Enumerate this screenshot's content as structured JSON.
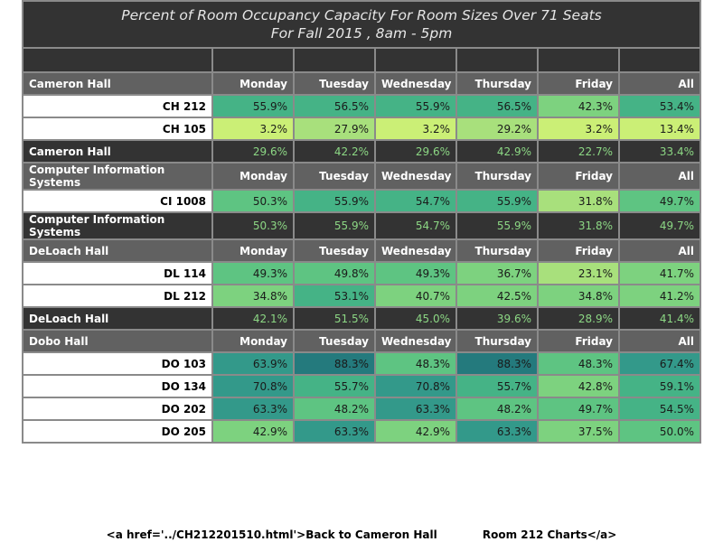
{
  "title_line1": "Percent of Room Occupancy Capacity For Room Sizes Over 71 Seats",
  "title_line2": "For Fall 2015  , 8am - 5pm",
  "days": [
    "Monday",
    "Tuesday",
    "Wednesday",
    "Thursday",
    "Friday",
    "All"
  ],
  "buildings": [
    {
      "name": "Cameron Hall",
      "rooms": [
        {
          "name": "CH 212",
          "values": [
            "55.9%",
            "56.5%",
            "55.9%",
            "56.5%",
            "42.3%",
            "53.4%"
          ]
        },
        {
          "name": "CH 105",
          "values": [
            "3.2%",
            "27.9%",
            "3.2%",
            "29.2%",
            "3.2%",
            "13.4%"
          ]
        }
      ],
      "total": [
        "29.6%",
        "42.2%",
        "29.6%",
        "42.9%",
        "22.7%",
        "33.4%"
      ]
    },
    {
      "name": "Computer Information Systems",
      "rooms": [
        {
          "name": "CI 1008",
          "values": [
            "50.3%",
            "55.9%",
            "54.7%",
            "55.9%",
            "31.8%",
            "49.7%"
          ]
        }
      ],
      "total": [
        "50.3%",
        "55.9%",
        "54.7%",
        "55.9%",
        "31.8%",
        "49.7%"
      ]
    },
    {
      "name": "DeLoach Hall",
      "rooms": [
        {
          "name": "DL 114",
          "values": [
            "49.3%",
            "49.8%",
            "49.3%",
            "36.7%",
            "23.1%",
            "41.7%"
          ]
        },
        {
          "name": "DL 212",
          "values": [
            "34.8%",
            "53.1%",
            "40.7%",
            "42.5%",
            "34.8%",
            "41.2%"
          ]
        }
      ],
      "total": [
        "42.1%",
        "51.5%",
        "45.0%",
        "39.6%",
        "28.9%",
        "41.4%"
      ]
    },
    {
      "name": "Dobo Hall",
      "rooms": [
        {
          "name": "DO 103",
          "values": [
            "63.9%",
            "88.3%",
            "48.3%",
            "88.3%",
            "48.3%",
            "67.4%"
          ]
        },
        {
          "name": "DO 134",
          "values": [
            "70.8%",
            "55.7%",
            "70.8%",
            "55.7%",
            "42.8%",
            "59.1%"
          ]
        },
        {
          "name": "DO 202",
          "values": [
            "63.3%",
            "48.2%",
            "63.3%",
            "48.2%",
            "49.7%",
            "54.5%"
          ]
        },
        {
          "name": "DO 205",
          "values": [
            "42.9%",
            "63.3%",
            "42.9%",
            "63.3%",
            "37.5%",
            "50.0%"
          ]
        }
      ]
    }
  ],
  "footer_link_text": "<a href='../CH212201510.html'>Back to Cameron Hall            Room 212 Charts</a>",
  "chart_data": {
    "type": "heatmap",
    "title": "Percent of Room Occupancy Capacity For Room Sizes Over 71 Seats",
    "subtitle": "For Fall 2015  , 8am - 5pm",
    "columns": [
      "Monday",
      "Tuesday",
      "Wednesday",
      "Thursday",
      "Friday",
      "All"
    ],
    "rows": [
      {
        "building": "Cameron Hall",
        "room": "CH 212",
        "values": [
          55.9,
          56.5,
          55.9,
          56.5,
          42.3,
          53.4
        ]
      },
      {
        "building": "Cameron Hall",
        "room": "CH 105",
        "values": [
          3.2,
          27.9,
          3.2,
          29.2,
          3.2,
          13.4
        ]
      },
      {
        "building": "Computer Information Systems",
        "room": "CI 1008",
        "values": [
          50.3,
          55.9,
          54.7,
          55.9,
          31.8,
          49.7
        ]
      },
      {
        "building": "DeLoach Hall",
        "room": "DL 114",
        "values": [
          49.3,
          49.8,
          49.3,
          36.7,
          23.1,
          41.7
        ]
      },
      {
        "building": "DeLoach Hall",
        "room": "DL 212",
        "values": [
          34.8,
          53.1,
          40.7,
          42.5,
          34.8,
          41.2
        ]
      },
      {
        "building": "Dobo Hall",
        "room": "DO 103",
        "values": [
          63.9,
          88.3,
          48.3,
          88.3,
          48.3,
          67.4
        ]
      },
      {
        "building": "Dobo Hall",
        "room": "DO 134",
        "values": [
          70.8,
          55.7,
          70.8,
          55.7,
          42.8,
          59.1
        ]
      },
      {
        "building": "Dobo Hall",
        "room": "DO 202",
        "values": [
          63.3,
          48.2,
          63.3,
          48.2,
          49.7,
          54.5
        ]
      },
      {
        "building": "Dobo Hall",
        "room": "DO 205",
        "values": [
          42.9,
          63.3,
          42.9,
          63.3,
          37.5,
          50.0
        ]
      }
    ],
    "building_totals": [
      {
        "building": "Cameron Hall",
        "values": [
          29.6,
          42.2,
          29.6,
          42.9,
          22.7,
          33.4
        ]
      },
      {
        "building": "Computer Information Systems",
        "values": [
          50.3,
          55.9,
          54.7,
          55.9,
          31.8,
          49.7
        ]
      },
      {
        "building": "DeLoach Hall",
        "values": [
          42.1,
          51.5,
          45.0,
          39.6,
          28.9,
          41.4
        ]
      }
    ],
    "color_scale": [
      "#cbef76",
      "#a8e07c",
      "#7dd27f",
      "#5ec482",
      "#45b386",
      "#33998a",
      "#247a7d"
    ]
  }
}
